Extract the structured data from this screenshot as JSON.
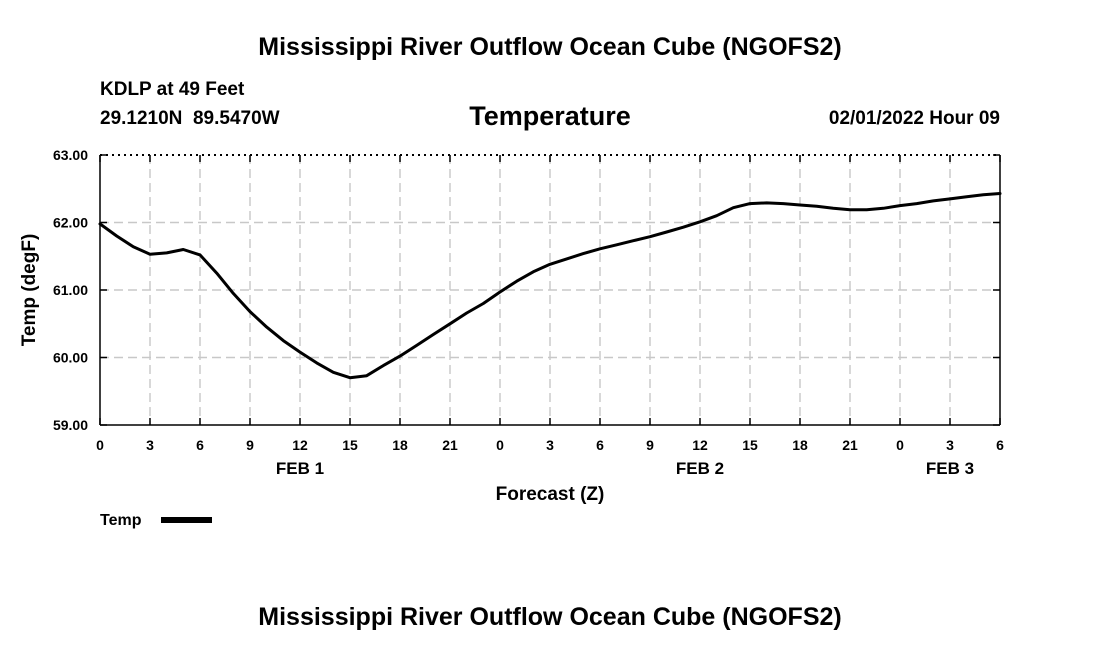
{
  "page": {
    "title_top": "Mississippi River Outflow Ocean Cube (NGOFS2)",
    "title_bottom": "Mississippi River Outflow Ocean Cube (NGOFS2)",
    "station": "KDLP at 49 Feet",
    "coords": "29.1210N  89.5470W",
    "variable": "Temperature",
    "datetime": "02/01/2022 Hour 09"
  },
  "chart_data": {
    "type": "line",
    "title": "Temperature",
    "xlabel": "Forecast (Z)",
    "ylabel": "Temp (degF)",
    "ylim": [
      59.0,
      63.0
    ],
    "xlim": [
      0,
      54
    ],
    "grid": true,
    "x_ticks": [
      0,
      3,
      6,
      9,
      12,
      15,
      18,
      21,
      24,
      27,
      30,
      33,
      36,
      39,
      42,
      45,
      48,
      51,
      54
    ],
    "x_tick_labels": [
      "0",
      "3",
      "6",
      "9",
      "12",
      "15",
      "18",
      "21",
      "0",
      "3",
      "6",
      "9",
      "12",
      "15",
      "18",
      "21",
      "0",
      "3",
      "6"
    ],
    "y_ticks": [
      59.0,
      60.0,
      61.0,
      62.0,
      63.0
    ],
    "y_tick_labels": [
      "59.00",
      "60.00",
      "61.00",
      "62.00",
      "63.00"
    ],
    "day_labels": [
      {
        "x": 12,
        "label": "FEB 1"
      },
      {
        "x": 36,
        "label": "FEB 2"
      },
      {
        "x": 51,
        "label": "FEB 3"
      }
    ],
    "legend": {
      "position": "bottom-left",
      "entries": [
        "Temp"
      ]
    },
    "series": [
      {
        "name": "Temp",
        "color": "#000000",
        "x": [
          0,
          1,
          2,
          3,
          4,
          5,
          6,
          7,
          8,
          9,
          10,
          11,
          12,
          13,
          14,
          15,
          16,
          17,
          18,
          19,
          20,
          21,
          22,
          23,
          24,
          25,
          26,
          27,
          28,
          29,
          30,
          31,
          32,
          33,
          34,
          35,
          36,
          37,
          38,
          39,
          40,
          41,
          42,
          43,
          44,
          45,
          46,
          47,
          48,
          49,
          50,
          51,
          52,
          53,
          54
        ],
        "values": [
          61.98,
          61.8,
          61.64,
          61.53,
          61.55,
          61.6,
          61.52,
          61.25,
          60.95,
          60.68,
          60.45,
          60.25,
          60.08,
          59.92,
          59.78,
          59.7,
          59.73,
          59.88,
          60.02,
          60.18,
          60.34,
          60.5,
          60.66,
          60.8,
          60.97,
          61.13,
          61.27,
          61.38,
          61.46,
          61.54,
          61.61,
          61.67,
          61.73,
          61.79,
          61.86,
          61.93,
          62.01,
          62.1,
          62.22,
          62.28,
          62.29,
          62.28,
          62.26,
          62.24,
          62.21,
          62.19,
          62.19,
          62.21,
          62.25,
          62.28,
          62.32,
          62.35,
          62.38,
          62.41,
          62.43
        ]
      }
    ]
  }
}
